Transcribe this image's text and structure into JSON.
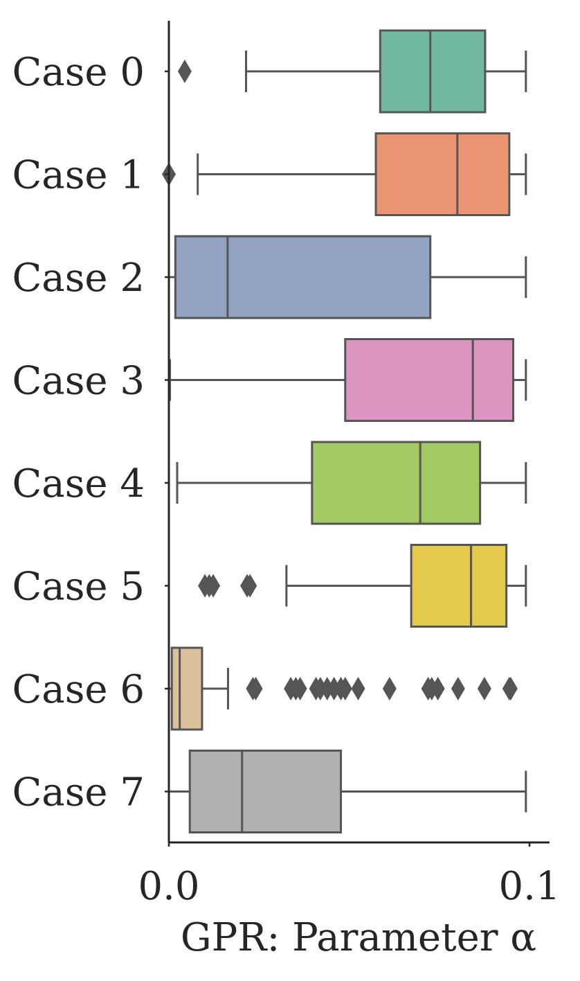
{
  "chart_data": {
    "type": "box",
    "orientation": "horizontal",
    "xlabel": "GPR: Parameter α",
    "ylabel": "",
    "xlim": [
      0.0,
      0.1
    ],
    "xticks": [
      "0.0",
      "0.1"
    ],
    "grid": false,
    "legend": "none",
    "categories": [
      "Case 0",
      "Case 1",
      "Case 2",
      "Case 3",
      "Case 4",
      "Case 5",
      "Case 6",
      "Case 7"
    ],
    "series": [
      {
        "category": "Case 0",
        "color": "#72b89f",
        "whisker_low": 0.0214,
        "q1": 0.0586,
        "median": 0.0725,
        "q3": 0.0877,
        "whisker_high": 0.099,
        "outliers": [
          0.0044
        ]
      },
      {
        "category": "Case 1",
        "color": "#ea9472",
        "whisker_low": 0.008,
        "q1": 0.0574,
        "median": 0.08,
        "q3": 0.0944,
        "whisker_high": 0.099,
        "outliers": [
          0.0
        ]
      },
      {
        "category": "Case 2",
        "color": "#93a4c3",
        "whisker_low": 0.0,
        "q1": 0.0018,
        "median": 0.0163,
        "q3": 0.0725,
        "whisker_high": 0.099,
        "outliers": []
      },
      {
        "category": "Case 3",
        "color": "#dc95c0",
        "whisker_low": 0.0003,
        "q1": 0.0489,
        "median": 0.0843,
        "q3": 0.0955,
        "whisker_high": 0.099,
        "outliers": []
      },
      {
        "category": "Case 4",
        "color": "#a3c963",
        "whisker_low": 0.0023,
        "q1": 0.0397,
        "median": 0.0697,
        "q3": 0.0863,
        "whisker_high": 0.099,
        "outliers": []
      },
      {
        "category": "Case 5",
        "color": "#e4ca4b",
        "whisker_low": 0.0326,
        "q1": 0.0672,
        "median": 0.0838,
        "q3": 0.0936,
        "whisker_high": 0.099,
        "outliers": [
          0.01,
          0.0112,
          0.0123,
          0.0217,
          0.0225
        ]
      },
      {
        "category": "Case 6",
        "color": "#dbc29d",
        "whisker_low": 0.0,
        "q1": 0.0008,
        "median": 0.003,
        "q3": 0.0092,
        "whisker_high": 0.0164,
        "outliers": [
          0.0233,
          0.0241,
          0.0338,
          0.0352,
          0.0364,
          0.0408,
          0.042,
          0.0439,
          0.0458,
          0.0477,
          0.0489,
          0.0525,
          0.0612,
          0.0719,
          0.0729,
          0.0746,
          0.0802,
          0.0875,
          0.0944,
          0.0948
        ]
      },
      {
        "category": "Case 7",
        "color": "#b0b0b0",
        "whisker_low": 0.0,
        "q1": 0.0058,
        "median": 0.0203,
        "q3": 0.0477,
        "whisker_high": 0.099,
        "outliers": []
      }
    ]
  }
}
